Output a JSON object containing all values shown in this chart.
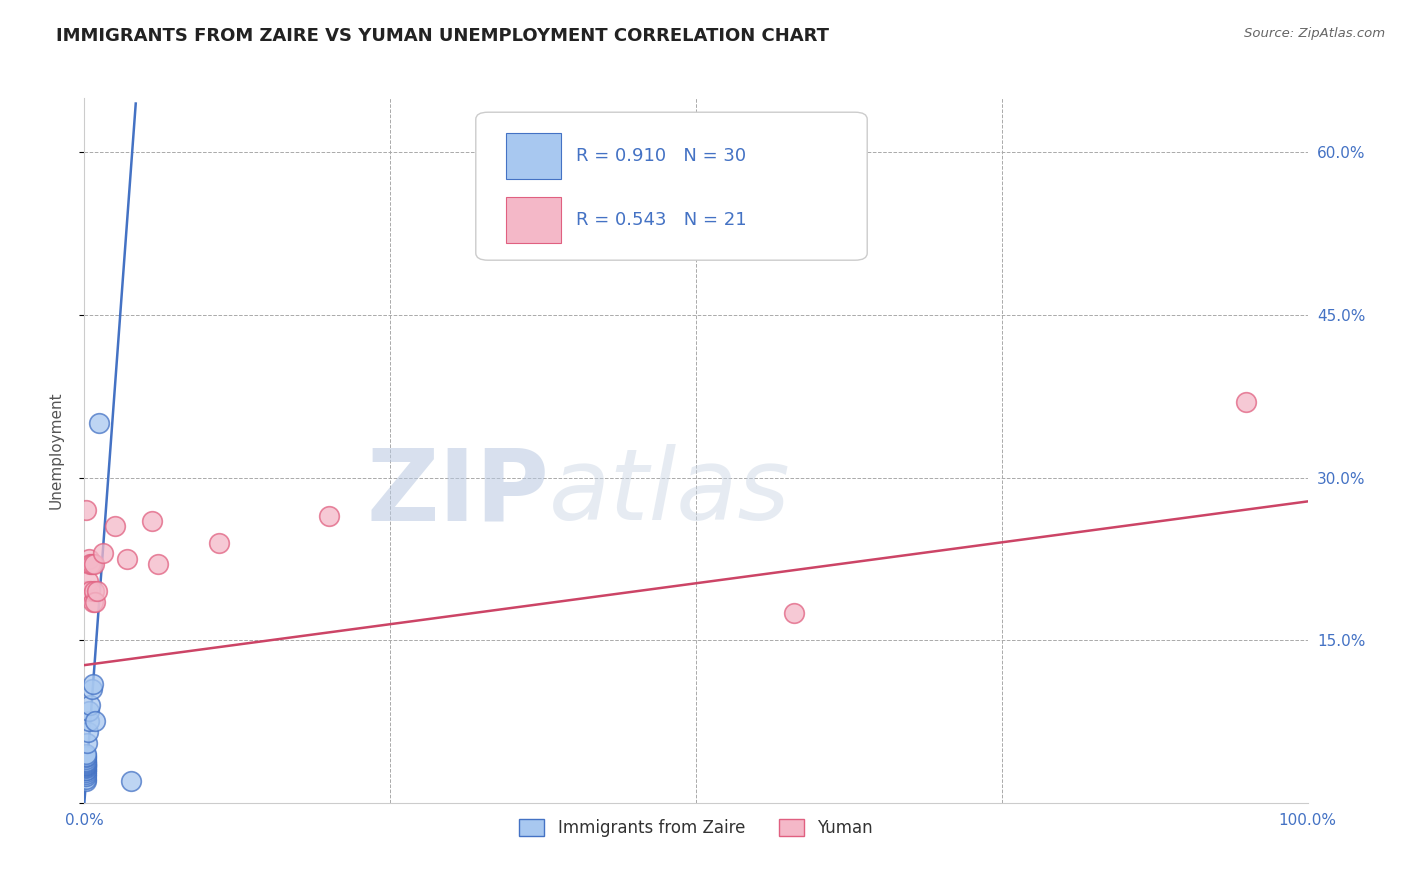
{
  "title": "IMMIGRANTS FROM ZAIRE VS YUMAN UNEMPLOYMENT CORRELATION CHART",
  "source": "Source: ZipAtlas.com",
  "ylabel": "Unemployment",
  "xlim": [
    0.0,
    1.0
  ],
  "ylim": [
    0.0,
    0.65
  ],
  "yticks": [
    0.0,
    0.15,
    0.3,
    0.45,
    0.6
  ],
  "ytick_labels": [
    "",
    "15.0%",
    "30.0%",
    "45.0%",
    "60.0%"
  ],
  "xticks": [
    0.0,
    0.25,
    0.5,
    0.75,
    1.0
  ],
  "xtick_labels": [
    "0.0%",
    "",
    "",
    "",
    "100.0%"
  ],
  "background_color": "#ffffff",
  "title_color": "#222222",
  "title_fontsize": 13,
  "tick_color": "#4472c4",
  "blue_r": 0.91,
  "blue_n": 30,
  "pink_r": 0.543,
  "pink_n": 21,
  "legend_label_blue": "Immigrants from Zaire",
  "legend_label_pink": "Yuman",
  "blue_face_color": "#a8c8f0",
  "blue_edge_color": "#4472c4",
  "pink_face_color": "#f4b8c8",
  "pink_edge_color": "#e06080",
  "blue_line_color": "#4472c4",
  "pink_line_color": "#cc4466",
  "watermark_color": "#d0d8e8",
  "blue_scatter_x": [
    0.001,
    0.001,
    0.001,
    0.001,
    0.001,
    0.001,
    0.001,
    0.001,
    0.001,
    0.001,
    0.001,
    0.001,
    0.001,
    0.001,
    0.001,
    0.001,
    0.001,
    0.001,
    0.001,
    0.001,
    0.002,
    0.003,
    0.004,
    0.004,
    0.005,
    0.006,
    0.007,
    0.009,
    0.012,
    0.038
  ],
  "blue_scatter_y": [
    0.02,
    0.022,
    0.025,
    0.027,
    0.028,
    0.03,
    0.03,
    0.032,
    0.033,
    0.034,
    0.035,
    0.035,
    0.036,
    0.037,
    0.038,
    0.039,
    0.04,
    0.042,
    0.043,
    0.045,
    0.055,
    0.065,
    0.075,
    0.085,
    0.09,
    0.105,
    0.11,
    0.075,
    0.35,
    0.02
  ],
  "pink_scatter_x": [
    0.001,
    0.002,
    0.003,
    0.004,
    0.005,
    0.005,
    0.006,
    0.007,
    0.008,
    0.008,
    0.009,
    0.01,
    0.015,
    0.025,
    0.035,
    0.055,
    0.06,
    0.11,
    0.2,
    0.58,
    0.95
  ],
  "pink_scatter_y": [
    0.27,
    0.195,
    0.205,
    0.225,
    0.22,
    0.195,
    0.22,
    0.185,
    0.195,
    0.22,
    0.185,
    0.195,
    0.23,
    0.255,
    0.225,
    0.26,
    0.22,
    0.24,
    0.265,
    0.175,
    0.37
  ],
  "blue_regline_x": [
    0.0,
    0.042
  ],
  "blue_regline_y": [
    0.0,
    0.645
  ],
  "pink_regline_x": [
    0.0,
    1.0
  ],
  "pink_regline_y": [
    0.127,
    0.278
  ]
}
